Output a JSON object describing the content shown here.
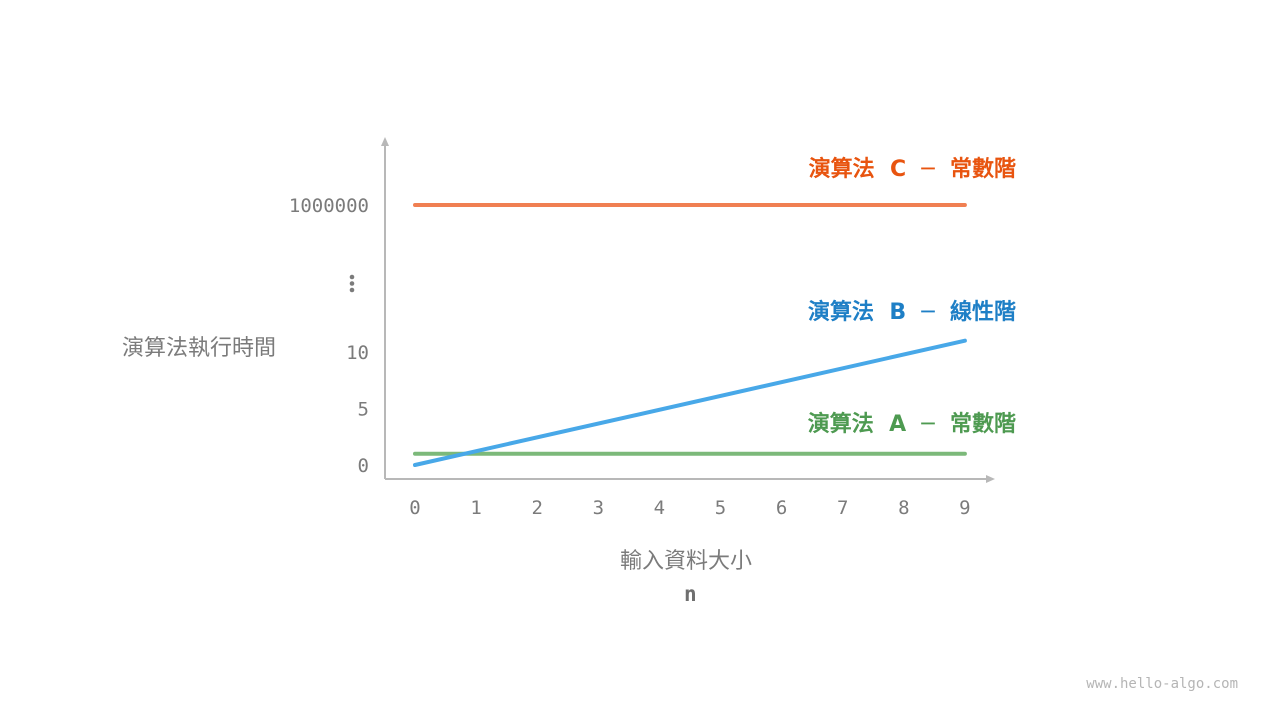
{
  "chart_data": {
    "type": "line",
    "ylabel": "演算法執行時間",
    "xlabel": "輸入資料大小",
    "xvar": "n",
    "x_ticks": [
      "0",
      "1",
      "2",
      "3",
      "4",
      "5",
      "6",
      "7",
      "8",
      "9"
    ],
    "y_ticks": [
      "0",
      "5",
      "10",
      "1000000"
    ],
    "y_break": "⋮",
    "series": [
      {
        "name": "演算法 A ─ 常數階",
        "color": "#7cb97a",
        "label_color": "#4e9a51",
        "x": [
          0,
          9
        ],
        "y": [
          1,
          1
        ]
      },
      {
        "name": "演算法 B ─ 線性階",
        "color": "#48a8e8",
        "label_color": "#1e7fc6",
        "x": [
          0,
          9
        ],
        "y": [
          0,
          11
        ]
      },
      {
        "name": "演算法 C ─ 常數階",
        "color": "#f07f52",
        "label_color": "#e8540f",
        "x": [
          0,
          9
        ],
        "y": [
          1000000,
          1000000
        ]
      }
    ],
    "axis_color": "#b8b8b8",
    "grid": false,
    "legend": "inline labels"
  },
  "watermark": "www.hello-algo.com"
}
